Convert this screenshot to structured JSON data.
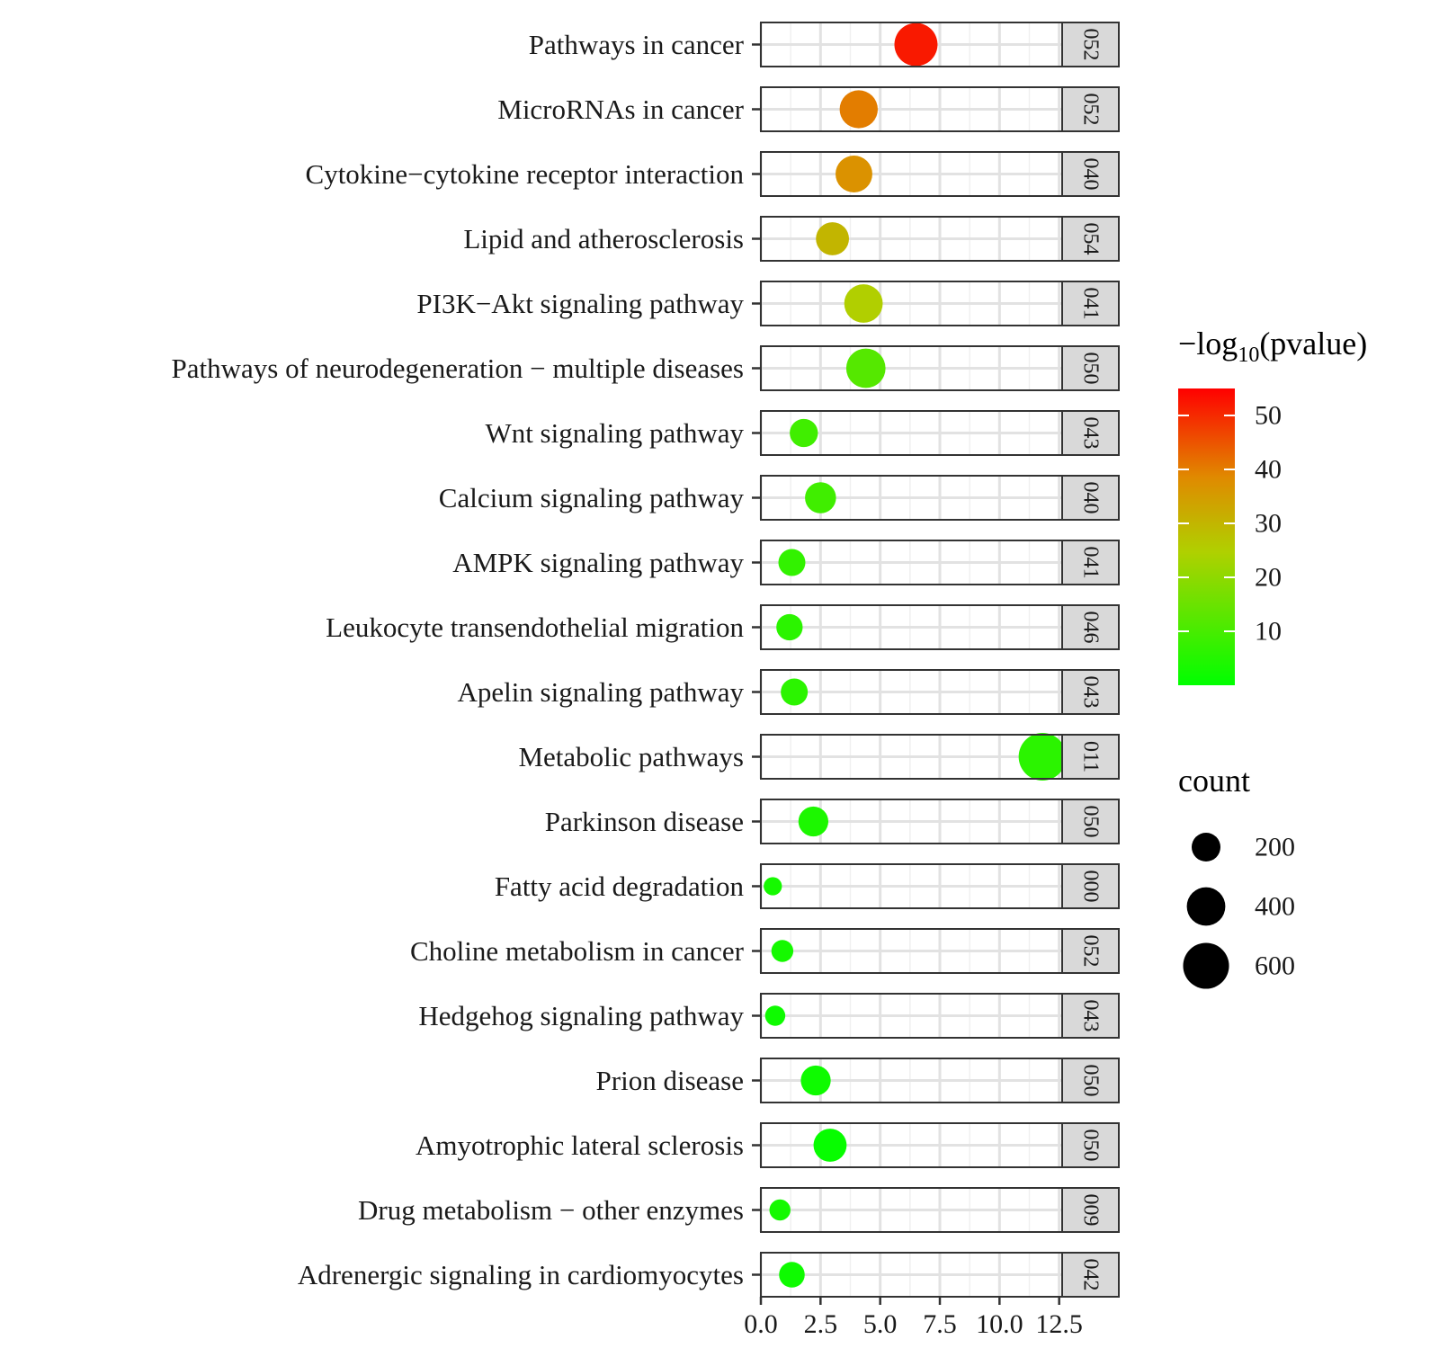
{
  "chart_data": {
    "type": "scatter",
    "title": "",
    "xlabel": "",
    "ylabel": "",
    "xlim": [
      0,
      15
    ],
    "x_ticks": [
      "0.0",
      "2.5",
      "5.0",
      "7.5",
      "10.0",
      "12.5"
    ],
    "grid": true,
    "facet_strips": [
      "052",
      "052",
      "040",
      "054",
      "041",
      "050",
      "043",
      "040",
      "041",
      "046",
      "043",
      "011",
      "050",
      "000",
      "052",
      "043",
      "050",
      "050",
      "009",
      "042"
    ],
    "categories": [
      "Pathways in cancer",
      "MicroRNAs in cancer",
      "Cytokine−cytokine receptor interaction",
      "Lipid and atherosclerosis",
      "PI3K−Akt signaling pathway",
      "Pathways of neurodegeneration − multiple diseases",
      "Wnt signaling pathway",
      "Calcium signaling pathway",
      "AMPK signaling pathway",
      "Leukocyte transendothelial migration",
      "Apelin signaling pathway",
      "Metabolic pathways",
      "Parkinson disease",
      "Fatty acid degradation",
      "Choline metabolism in cancer",
      "Hedgehog signaling pathway",
      "Prion disease",
      "Amyotrophic lateral sclerosis",
      "Drug metabolism − other enzymes",
      "Adrenergic signaling in cardiomyocytes"
    ],
    "points": [
      {
        "x": 6.5,
        "count": 520,
        "neglog10p": 52
      },
      {
        "x": 4.1,
        "count": 390,
        "neglog10p": 40
      },
      {
        "x": 3.9,
        "count": 360,
        "neglog10p": 37
      },
      {
        "x": 3.0,
        "count": 280,
        "neglog10p": 30
      },
      {
        "x": 4.3,
        "count": 400,
        "neglog10p": 25
      },
      {
        "x": 4.4,
        "count": 420,
        "neglog10p": 12
      },
      {
        "x": 1.8,
        "count": 190,
        "neglog10p": 9
      },
      {
        "x": 2.5,
        "count": 240,
        "neglog10p": 9
      },
      {
        "x": 1.3,
        "count": 170,
        "neglog10p": 7
      },
      {
        "x": 1.2,
        "count": 160,
        "neglog10p": 6
      },
      {
        "x": 1.4,
        "count": 170,
        "neglog10p": 6
      },
      {
        "x": 11.8,
        "count": 650,
        "neglog10p": 6
      },
      {
        "x": 2.2,
        "count": 220,
        "neglog10p": 4
      },
      {
        "x": 0.5,
        "count": 60,
        "neglog10p": 3
      },
      {
        "x": 0.9,
        "count": 100,
        "neglog10p": 3
      },
      {
        "x": 0.6,
        "count": 80,
        "neglog10p": 2
      },
      {
        "x": 2.3,
        "count": 220,
        "neglog10p": 2
      },
      {
        "x": 2.9,
        "count": 280,
        "neglog10p": 1
      },
      {
        "x": 0.8,
        "count": 90,
        "neglog10p": 3
      },
      {
        "x": 1.3,
        "count": 150,
        "neglog10p": 2
      }
    ],
    "color_legend": {
      "title_main": "−log",
      "title_sub": "10",
      "title_tail": "(pvalue)",
      "ticks": [
        "50",
        "40",
        "30",
        "20",
        "10"
      ],
      "tick_values": [
        50,
        40,
        30,
        20,
        10
      ],
      "range": [
        0,
        55
      ],
      "low_color": "#00ff00",
      "high_color": "#ff0000"
    },
    "size_legend": {
      "title": "count",
      "labels": [
        "200",
        "400",
        "600"
      ],
      "values": [
        200,
        400,
        600
      ]
    }
  }
}
